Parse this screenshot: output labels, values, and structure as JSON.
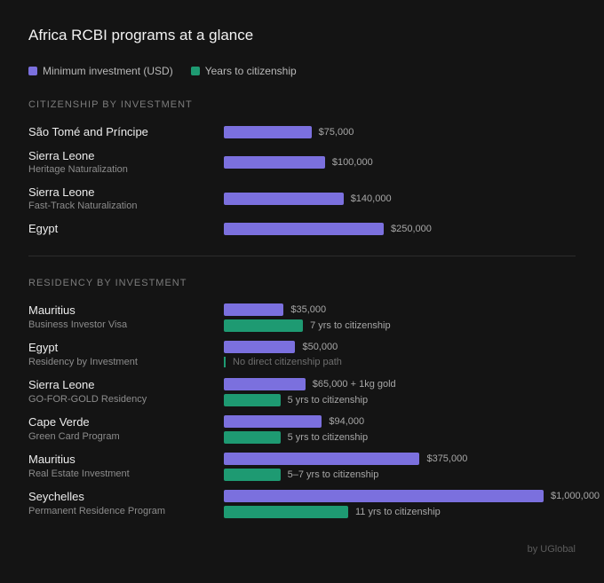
{
  "title": "Africa RCBI programs at a glance",
  "legend": [
    {
      "label": "Minimum investment (USD)",
      "color": "#7b70de"
    },
    {
      "label": "Years to citizenship",
      "color": "#1e9a72"
    }
  ],
  "footer": "by UGlobal",
  "chart_data": {
    "type": "bar",
    "title": "Africa RCBI programs at a glance",
    "orientation": "horizontal",
    "series_names": [
      "Minimum investment (USD)",
      "Years to citizenship"
    ],
    "investment_scale_max": 1000000,
    "years_scale_max": 11,
    "sections": [
      {
        "heading": "CITIZENSHIP BY INVESTMENT",
        "items": [
          {
            "country": "São Tomé and Príncipe",
            "program": "",
            "investment": 75000,
            "investment_label": "$75,000"
          },
          {
            "country": "Sierra Leone",
            "program": "Heritage Naturalization",
            "investment": 100000,
            "investment_label": "$100,000"
          },
          {
            "country": "Sierra Leone",
            "program": "Fast-Track Naturalization",
            "investment": 140000,
            "investment_label": "$140,000"
          },
          {
            "country": "Egypt",
            "program": "",
            "investment": 250000,
            "investment_label": "$250,000"
          }
        ]
      },
      {
        "heading": "RESIDENCY BY INVESTMENT",
        "items": [
          {
            "country": "Mauritius",
            "program": "Business Investor Visa",
            "investment": 35000,
            "investment_label": "$35,000",
            "years": 7,
            "years_label": "7 yrs to citizenship"
          },
          {
            "country": "Egypt",
            "program": "Residency by Investment",
            "investment": 50000,
            "investment_label": "$50,000",
            "years": null,
            "years_label": "No direct citizenship path"
          },
          {
            "country": "Sierra Leone",
            "program": "GO-FOR-GOLD Residency",
            "investment": 65000,
            "investment_label": "$65,000 + 1kg gold",
            "years": 5,
            "years_label": "5 yrs to citizenship"
          },
          {
            "country": "Cape Verde",
            "program": "Green Card Program",
            "investment": 94000,
            "investment_label": "$94,000",
            "years": 5,
            "years_label": "5 yrs to citizenship"
          },
          {
            "country": "Mauritius",
            "program": "Real Estate Investment",
            "investment": 375000,
            "investment_label": "$375,000",
            "years": 5,
            "years_label": "5–7 yrs to citizenship"
          },
          {
            "country": "Seychelles",
            "program": "Permanent Residence Program",
            "investment": 1000000,
            "investment_label": "$1,000,000",
            "years": 11,
            "years_label": "11 yrs to citizenship"
          }
        ]
      }
    ]
  }
}
